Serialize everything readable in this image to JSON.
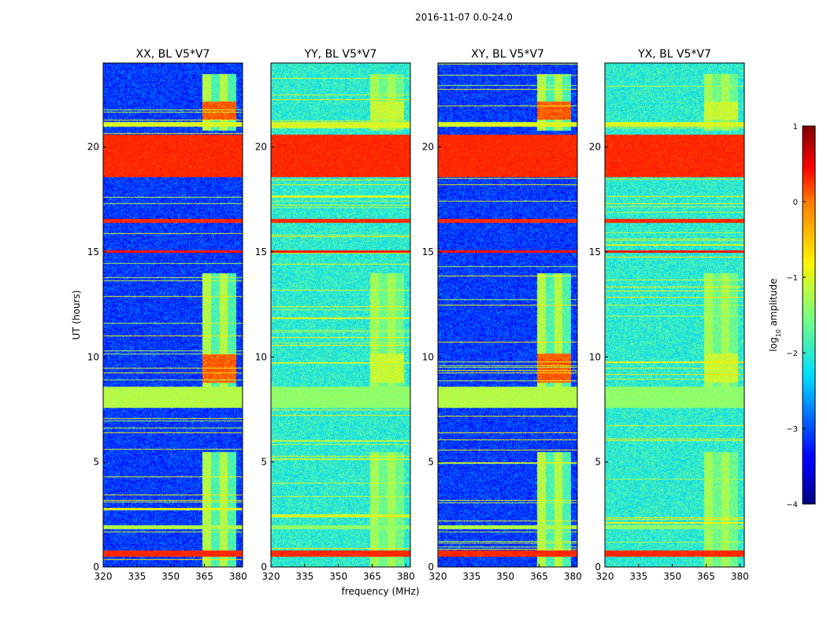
{
  "figure": {
    "suptitle": "2016-11-07 0.0-24.0"
  },
  "chart_data": {
    "type": "heatmap",
    "suptitle": "2016-11-07 0.0-24.0",
    "xlabel": "frequency (MHz)",
    "ylabel": "UT (hours)",
    "xlim": [
      320,
      382
    ],
    "ylim": [
      0,
      24
    ],
    "x_ticks": [
      320,
      335,
      350,
      365,
      380
    ],
    "y_ticks": [
      0,
      5,
      10,
      15,
      20
    ],
    "colormap": "jet",
    "colorbar": {
      "label_main": "log",
      "label_sub": "10",
      "label_rest": " amplitude",
      "ticks": [
        1,
        0,
        -1,
        -2,
        -3,
        -4
      ],
      "tick_labels": [
        "1",
        "0",
        "−1",
        "−2",
        "−3",
        "−4"
      ],
      "range": [
        -4,
        1
      ]
    },
    "panels": [
      {
        "title": "XX, BL V5*V7",
        "background_level": -3.1,
        "band_bg_level": -1.8,
        "rfi_band_levels": {
          "x_range": [
            364,
            379
          ],
          "dim": -1.2,
          "bright": 0.1
        },
        "horizontal_bands": [
          {
            "t": [
              18.6,
              20.6
            ],
            "level": 0.3
          },
          {
            "t": [
              16.4,
              16.6
            ],
            "level": 0.3
          },
          {
            "t": [
              15.0,
              15.1
            ],
            "level": 0.4
          },
          {
            "t": [
              21.0,
              21.2
            ],
            "level": -1.0
          },
          {
            "t": [
              7.6,
              8.6
            ],
            "level": -1.2
          },
          {
            "t": [
              0.5,
              0.8
            ],
            "level": 0.3
          },
          {
            "t": [
              1.8,
              2.0
            ],
            "level": -1.2
          }
        ]
      },
      {
        "title": "YY, BL V5*V7",
        "background_level": -2.0,
        "band_bg_level": -1.6,
        "rfi_band_levels": {
          "x_range": [
            364,
            379
          ],
          "dim": -1.3,
          "bright": -1.1
        },
        "horizontal_bands": [
          {
            "t": [
              18.6,
              20.6
            ],
            "level": 0.3
          },
          {
            "t": [
              16.4,
              16.6
            ],
            "level": 0.3
          },
          {
            "t": [
              15.0,
              15.1
            ],
            "level": 0.4
          },
          {
            "t": [
              21.0,
              21.2
            ],
            "level": -1.0
          },
          {
            "t": [
              7.6,
              8.6
            ],
            "level": -1.4
          },
          {
            "t": [
              0.5,
              0.8
            ],
            "level": 0.3
          },
          {
            "t": [
              1.8,
              2.0
            ],
            "level": -1.4
          }
        ]
      },
      {
        "title": "XY, BL V5*V7",
        "background_level": -3.1,
        "band_bg_level": -1.8,
        "rfi_band_levels": {
          "x_range": [
            364,
            379
          ],
          "dim": -1.2,
          "bright": 0.1
        },
        "horizontal_bands": [
          {
            "t": [
              18.6,
              20.6
            ],
            "level": 0.3
          },
          {
            "t": [
              16.4,
              16.6
            ],
            "level": 0.3
          },
          {
            "t": [
              15.0,
              15.1
            ],
            "level": 0.4
          },
          {
            "t": [
              21.0,
              21.2
            ],
            "level": -1.0
          },
          {
            "t": [
              7.6,
              8.6
            ],
            "level": -1.2
          },
          {
            "t": [
              0.5,
              0.8
            ],
            "level": 0.3
          },
          {
            "t": [
              1.8,
              2.0
            ],
            "level": -1.2
          }
        ]
      },
      {
        "title": "YX, BL V5*V7",
        "background_level": -2.0,
        "band_bg_level": -1.6,
        "rfi_band_levels": {
          "x_range": [
            364,
            379
          ],
          "dim": -1.3,
          "bright": -1.1
        },
        "horizontal_bands": [
          {
            "t": [
              18.6,
              20.6
            ],
            "level": 0.3
          },
          {
            "t": [
              16.4,
              16.6
            ],
            "level": 0.3
          },
          {
            "t": [
              15.0,
              15.1
            ],
            "level": 0.4
          },
          {
            "t": [
              21.0,
              21.2
            ],
            "level": -1.0
          },
          {
            "t": [
              7.6,
              8.6
            ],
            "level": -1.4
          },
          {
            "t": [
              0.5,
              0.8
            ],
            "level": 0.3
          },
          {
            "t": [
              1.8,
              2.0
            ],
            "level": -1.4
          }
        ]
      }
    ]
  }
}
